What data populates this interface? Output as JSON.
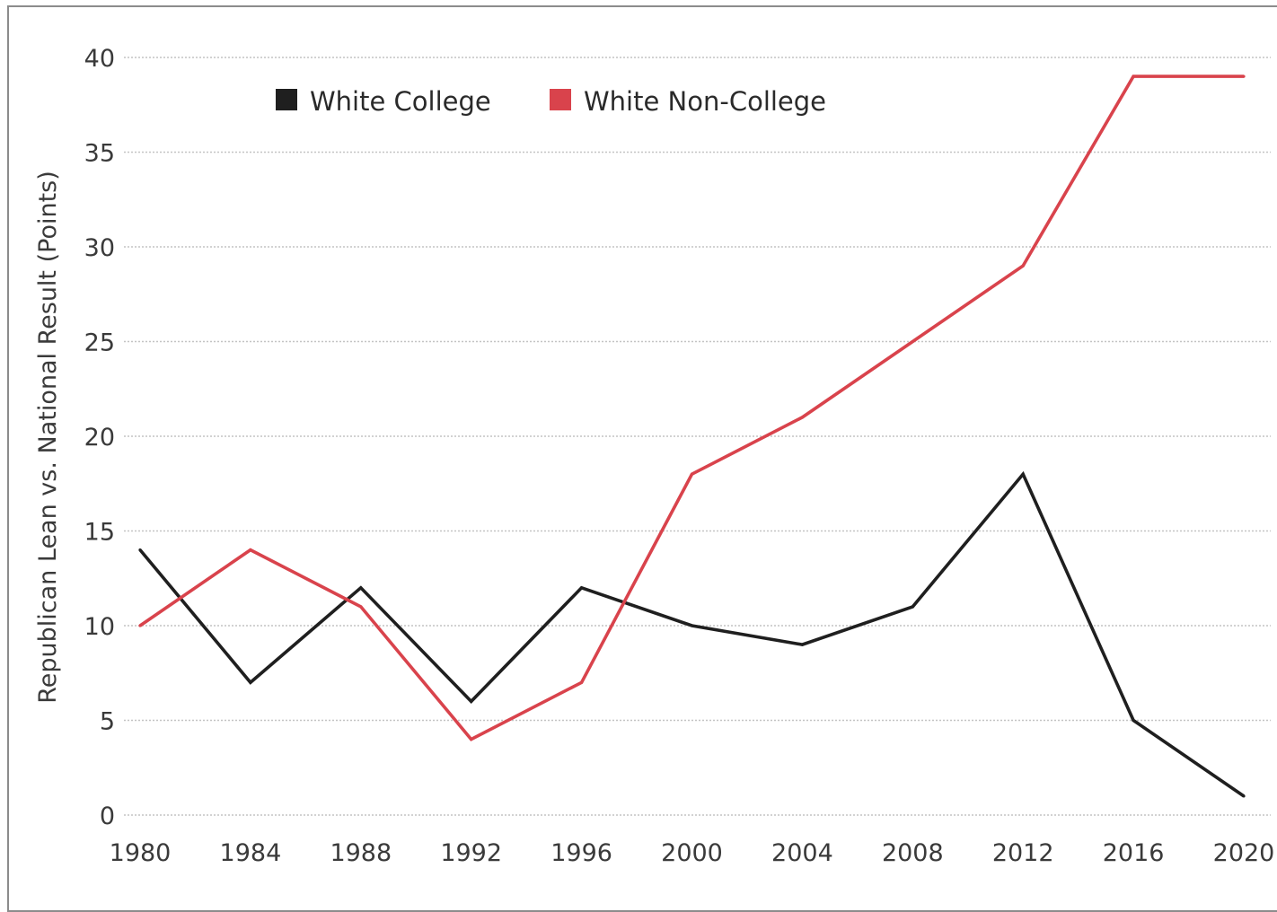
{
  "chart_data": {
    "type": "line",
    "title": "",
    "xlabel": "",
    "ylabel": "Republican Lean vs. National Result (Points)",
    "x": [
      1980,
      1984,
      1988,
      1992,
      1996,
      2000,
      2004,
      2008,
      2012,
      2016,
      2020
    ],
    "x_tick_labels": [
      "1980",
      "1984",
      "1988",
      "1992",
      "1996",
      "2000",
      "2004",
      "2008",
      "2012",
      "2016",
      "2020"
    ],
    "y_ticks": [
      0,
      5,
      10,
      15,
      20,
      25,
      30,
      35,
      40
    ],
    "ylim": [
      0,
      40
    ],
    "grid": "horizontal dotted",
    "legend_position": "top-left",
    "series": [
      {
        "name": "White College",
        "color": "#1f1f1f",
        "values": [
          14,
          7,
          12,
          6,
          12,
          10,
          9,
          11,
          18,
          5,
          1
        ]
      },
      {
        "name": "White Non-College",
        "color": "#d9434c",
        "values": [
          10,
          14,
          11,
          4,
          7,
          18,
          21,
          25,
          29,
          39,
          39
        ]
      }
    ]
  }
}
